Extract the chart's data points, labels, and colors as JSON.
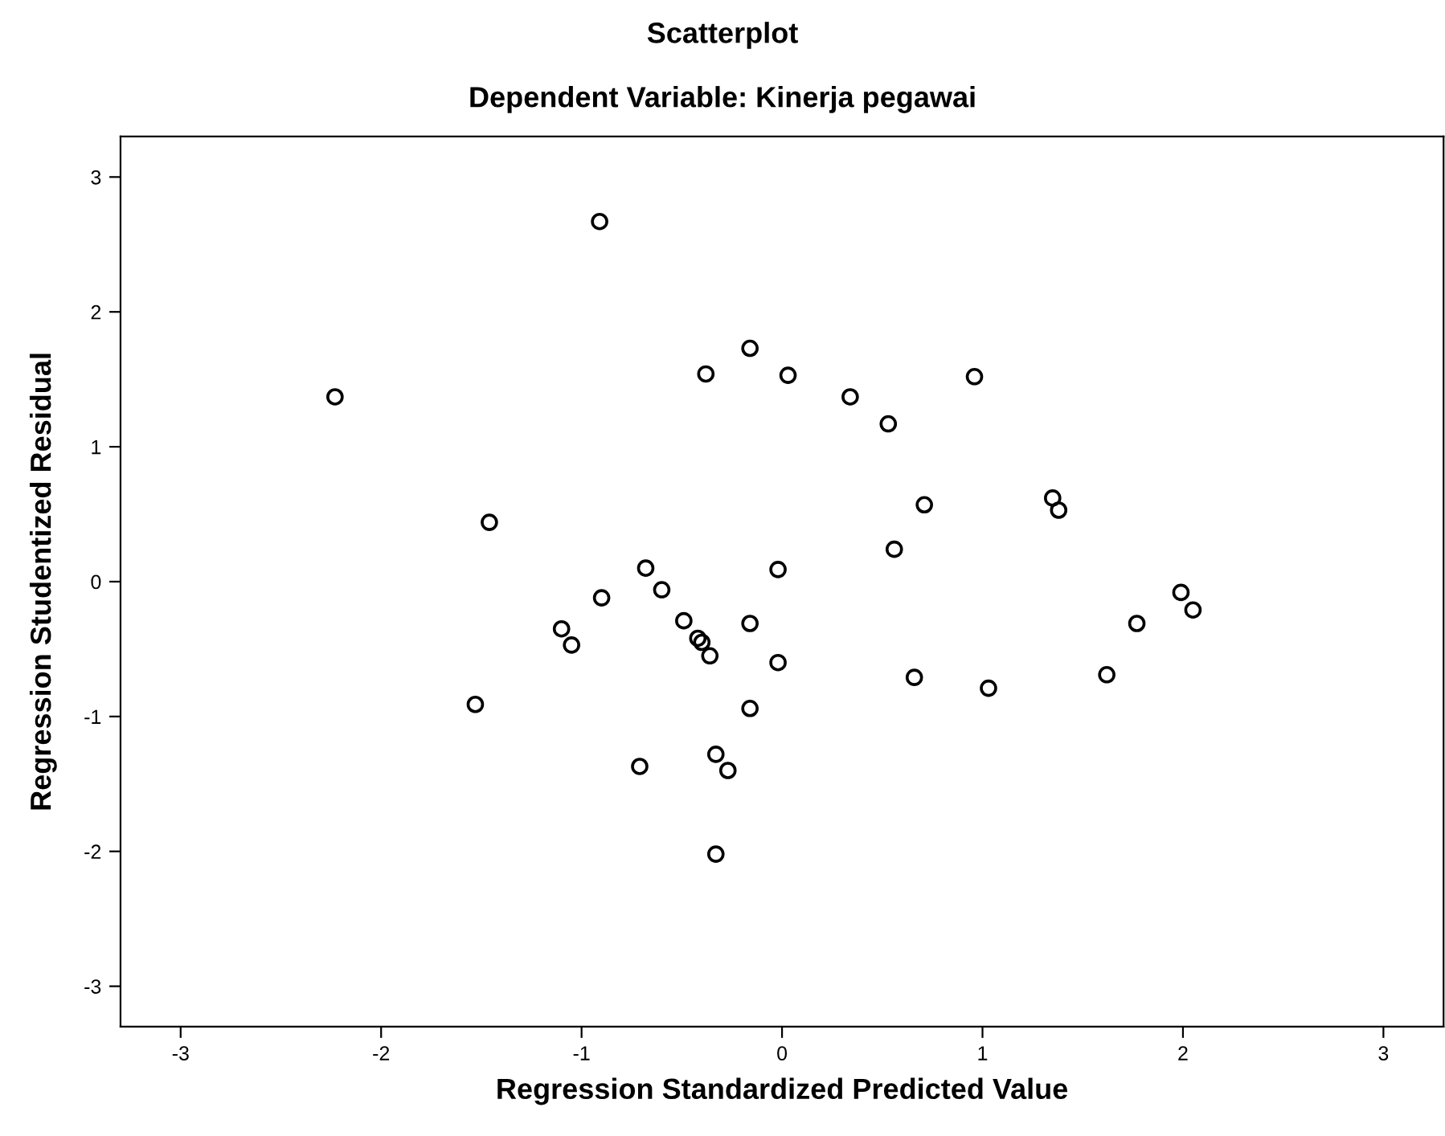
{
  "chart_data": {
    "type": "scatter",
    "title": "Scatterplot",
    "subtitle": "Dependent Variable: Kinerja pegawai",
    "xlabel": "Regression Standardized Predicted Value",
    "ylabel": "Regression Studentized Residual",
    "x": [
      -2.23,
      -1.53,
      -0.91,
      -0.16,
      -0.38,
      0.03,
      0.34,
      0.53,
      0.96,
      0.71,
      0.56,
      -1.46,
      -0.68,
      -0.02,
      -0.9,
      -0.6,
      -1.1,
      -1.05,
      -0.49,
      -0.42,
      -0.4,
      -0.36,
      -0.16,
      -0.02,
      0.66,
      1.03,
      -0.16,
      -0.33,
      -0.27,
      -0.71,
      -0.33,
      1.35,
      1.38,
      1.99,
      2.05,
      1.77,
      1.62
    ],
    "values": [
      1.37,
      -0.91,
      2.67,
      1.73,
      1.54,
      1.53,
      1.37,
      1.17,
      1.52,
      0.57,
      0.24,
      0.44,
      0.1,
      0.09,
      -0.12,
      -0.06,
      -0.35,
      -0.47,
      -0.29,
      -0.42,
      -0.45,
      -0.55,
      -0.31,
      -0.6,
      -0.71,
      -0.79,
      -0.94,
      -1.28,
      -1.4,
      -1.37,
      -2.02,
      0.62,
      0.53,
      -0.08,
      -0.21,
      -0.31,
      -0.69
    ],
    "color": "#000000",
    "marker": "circle",
    "grid": false,
    "legend": false,
    "xlim": [
      -3.3,
      3.3
    ],
    "ylim": [
      -3.3,
      3.3
    ],
    "xticks": [
      -3,
      -2,
      -1,
      0,
      1,
      2,
      3
    ],
    "yticks": [
      -3,
      -2,
      -1,
      0,
      1,
      2,
      3
    ]
  }
}
